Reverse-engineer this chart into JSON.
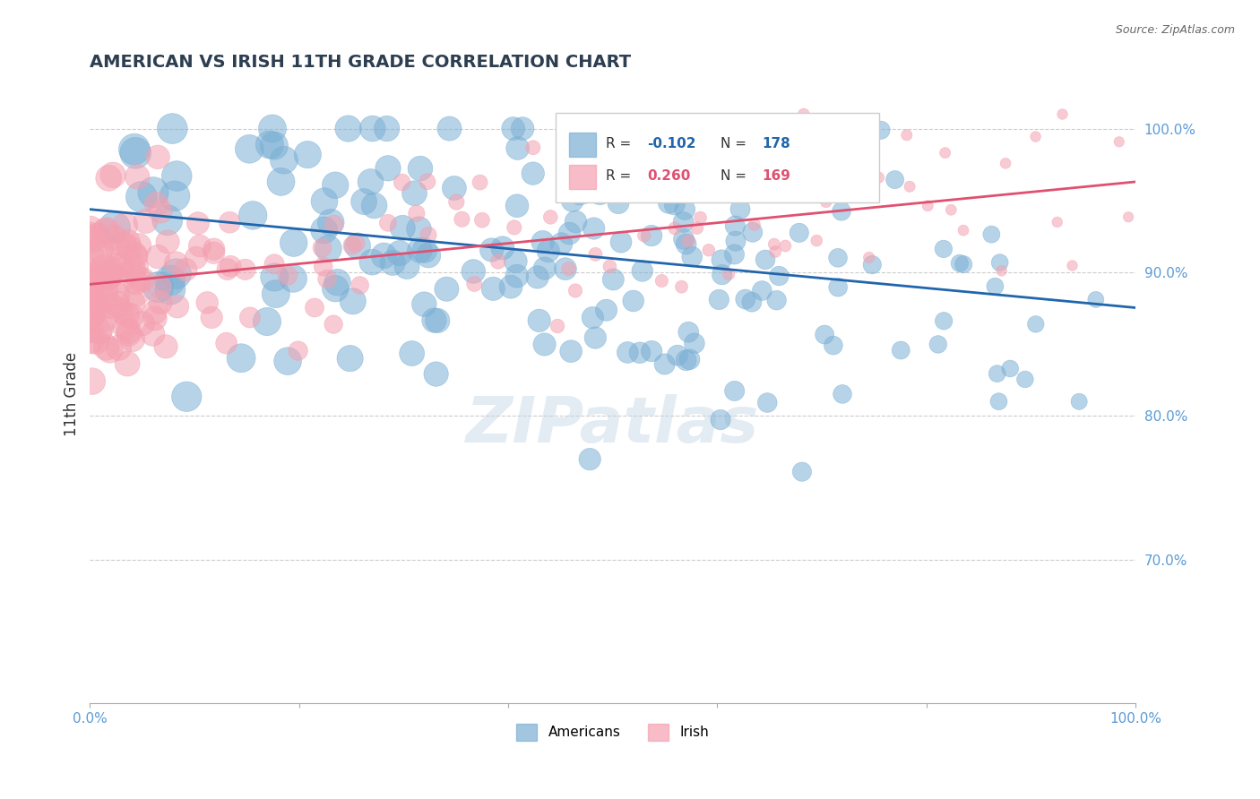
{
  "title": "AMERICAN VS IRISH 11TH GRADE CORRELATION CHART",
  "source": "Source: ZipAtlas.com",
  "ylabel": "11th Grade",
  "xlim": [
    0.0,
    1.0
  ],
  "ylim": [
    0.6,
    1.03
  ],
  "yticks": [
    0.7,
    0.8,
    0.9,
    1.0
  ],
  "ytick_labels": [
    "70.0%",
    "80.0%",
    "90.0%",
    "100.0%"
  ],
  "american_color": "#7bafd4",
  "irish_color": "#f4a0b0",
  "american_line_color": "#2166ac",
  "irish_line_color": "#e05070",
  "R_american": -0.102,
  "N_american": 178,
  "R_irish": 0.26,
  "N_irish": 169,
  "legend_american": "Americans",
  "legend_irish": "Irish",
  "background_color": "#ffffff",
  "grid_color": "#cccccc",
  "title_color": "#2c3e50",
  "axis_label_color": "#5b9bd5",
  "watermark": "ZIPatlas",
  "american_seed": 42,
  "irish_seed": 123
}
